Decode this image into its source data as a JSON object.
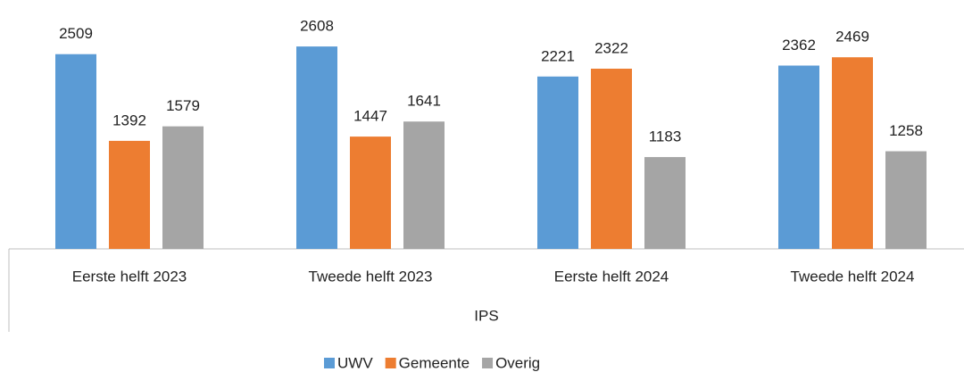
{
  "chart_data": {
    "type": "bar",
    "categories": [
      "Eerste helft 2023",
      "Tweede helft 2023",
      "Eerste helft 2024",
      "Tweede helft 2024"
    ],
    "x_group_label": "IPS",
    "series": [
      {
        "name": "UWV",
        "color": "#5b9bd5",
        "values": [
          2509,
          2608,
          2221,
          2362
        ]
      },
      {
        "name": "Gemeente",
        "color": "#ed7d31",
        "values": [
          1392,
          1447,
          2322,
          2469
        ]
      },
      {
        "name": "Overig",
        "color": "#a5a5a5",
        "values": [
          1579,
          1641,
          1183,
          1258
        ]
      }
    ],
    "ylim": [
      0,
      3000
    ],
    "legend": "bottom"
  }
}
